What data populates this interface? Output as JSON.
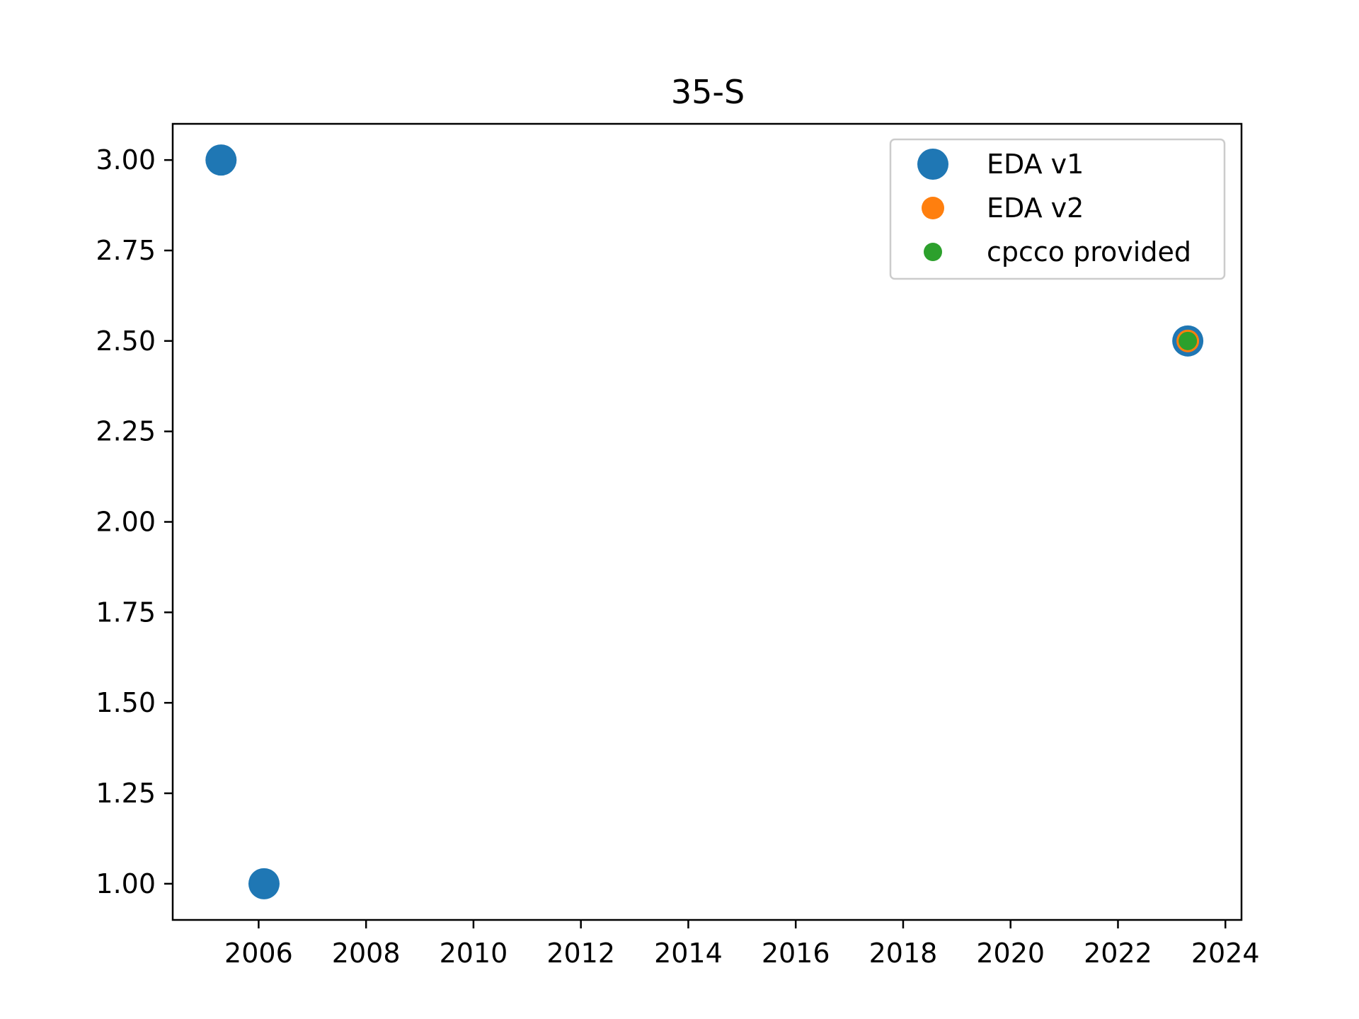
{
  "chart_data": {
    "type": "scatter",
    "title": "35-S",
    "xlabel": "",
    "ylabel": "",
    "xlim": [
      2004.4,
      2024.3
    ],
    "ylim": [
      0.9,
      3.1
    ],
    "x_ticks": [
      2006,
      2008,
      2010,
      2012,
      2014,
      2016,
      2018,
      2020,
      2022,
      2024
    ],
    "y_ticks": [
      1.0,
      1.25,
      1.5,
      1.75,
      2.0,
      2.25,
      2.5,
      2.75,
      3.0
    ],
    "y_tick_labels": [
      "1.00",
      "1.25",
      "1.50",
      "1.75",
      "2.00",
      "2.25",
      "2.50",
      "2.75",
      "3.00"
    ],
    "grid": false,
    "legend_position": "top-right",
    "series": [
      {
        "name": "EDA v1",
        "color": "#1f77b4",
        "marker_size": "large",
        "points": [
          {
            "x": 2005.3,
            "y": 3.0
          },
          {
            "x": 2006.1,
            "y": 1.0
          },
          {
            "x": 2023.3,
            "y": 2.5
          }
        ]
      },
      {
        "name": "EDA v2",
        "color": "#ff7f0e",
        "marker_size": "medium",
        "points": [
          {
            "x": 2023.3,
            "y": 2.5
          }
        ]
      },
      {
        "name": "cpcco provided",
        "color": "#2ca02c",
        "marker_size": "small",
        "points": [
          {
            "x": 2023.3,
            "y": 2.5
          }
        ]
      }
    ]
  }
}
